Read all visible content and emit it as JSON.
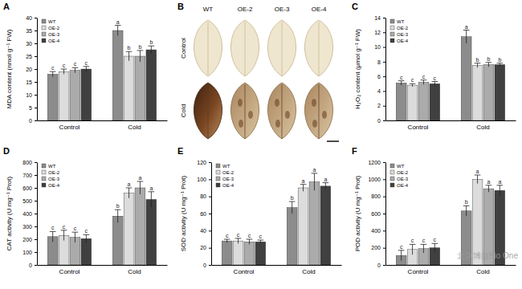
{
  "chart_data": [
    {
      "type": "bar",
      "title": "A",
      "y_label": "MDA content (nmol g⁻¹ FW)",
      "categories": [
        "Control",
        "Cold"
      ],
      "series": [
        {
          "name": "WT",
          "color": "#8c8c8c",
          "values": [
            18,
            35
          ],
          "errors": [
            1,
            2
          ],
          "annotations": [
            "c",
            "a"
          ]
        },
        {
          "name": "OE-2",
          "color": "#dcdcdc",
          "values": [
            19,
            25
          ],
          "errors": [
            1,
            1.8
          ],
          "annotations": [
            "c",
            "b"
          ]
        },
        {
          "name": "OE-3",
          "color": "#ababab",
          "values": [
            19.5,
            25
          ],
          "errors": [
            1,
            2.2
          ],
          "annotations": [
            "c",
            "b"
          ]
        },
        {
          "name": "OE-4",
          "color": "#404040",
          "values": [
            20,
            27.5
          ],
          "errors": [
            1,
            1.5
          ],
          "annotations": [
            "c",
            "b"
          ]
        }
      ],
      "ylim": [
        0,
        40
      ],
      "yticks": [
        0,
        5,
        10,
        15,
        20,
        25,
        30,
        35,
        40
      ],
      "legend": "upper left"
    },
    {
      "type": "image",
      "title": "B",
      "columns": [
        "WT",
        "OE-2",
        "OE-3",
        "OE-4"
      ],
      "rows": [
        "Control",
        "Cold"
      ]
    },
    {
      "type": "bar",
      "title": "C",
      "y_label": "H₂O₂ content (μmol g⁻¹ FW)",
      "categories": [
        "Control",
        "Cold"
      ],
      "series": [
        {
          "name": "WT",
          "color": "#8c8c8c",
          "values": [
            5.1,
            11.4
          ],
          "errors": [
            0.3,
            0.9
          ],
          "annotations": [
            "c",
            "a"
          ]
        },
        {
          "name": "OE-2",
          "color": "#dcdcdc",
          "values": [
            4.8,
            7.5
          ],
          "errors": [
            0.2,
            0.3
          ],
          "annotations": [
            "c",
            "b"
          ]
        },
        {
          "name": "OE-3",
          "color": "#ababab",
          "values": [
            5.2,
            7.6
          ],
          "errors": [
            0.3,
            0.3
          ],
          "annotations": [
            "c",
            "b"
          ]
        },
        {
          "name": "OE-4",
          "color": "#404040",
          "values": [
            5.0,
            7.6
          ],
          "errors": [
            0.3,
            0.2
          ],
          "annotations": [
            "c",
            "b"
          ]
        }
      ],
      "ylim": [
        0,
        14
      ],
      "yticks": [
        0,
        2,
        4,
        6,
        8,
        10,
        12,
        14
      ],
      "legend": "upper left"
    },
    {
      "type": "bar",
      "title": "D",
      "y_label": "CAT activity (U mg⁻¹ Prot)",
      "categories": [
        "Control",
        "Cold"
      ],
      "series": [
        {
          "name": "WT",
          "color": "#8c8c8c",
          "values": [
            220,
            380
          ],
          "errors": [
            40,
            50
          ],
          "annotations": [
            "c",
            "b"
          ]
        },
        {
          "name": "OE-2",
          "color": "#dcdcdc",
          "values": [
            230,
            560
          ],
          "errors": [
            40,
            40
          ],
          "annotations": [
            "c",
            "a"
          ]
        },
        {
          "name": "OE-3",
          "color": "#ababab",
          "values": [
            215,
            600
          ],
          "errors": [
            40,
            50
          ],
          "annotations": [
            "c",
            "a"
          ]
        },
        {
          "name": "OE-4",
          "color": "#404040",
          "values": [
            205,
            510
          ],
          "errors": [
            30,
            60
          ],
          "annotations": [
            "c",
            "a"
          ]
        }
      ],
      "ylim": [
        0,
        800
      ],
      "yticks": [
        0,
        100,
        200,
        300,
        400,
        500,
        600,
        700,
        800
      ],
      "legend": "upper left"
    },
    {
      "type": "bar",
      "title": "E",
      "y_label": "SOD activity (U mg⁻¹ Prot)",
      "categories": [
        "Control",
        "Cold"
      ],
      "series": [
        {
          "name": "WT",
          "color": "#8c8c8c",
          "values": [
            28,
            67
          ],
          "errors": [
            2,
            7
          ],
          "annotations": [
            "c",
            "b"
          ]
        },
        {
          "name": "OE-2",
          "color": "#dcdcdc",
          "values": [
            28,
            90
          ],
          "errors": [
            3,
            4
          ],
          "annotations": [
            "c",
            "a"
          ]
        },
        {
          "name": "OE-3",
          "color": "#ababab",
          "values": [
            27,
            97
          ],
          "errors": [
            3,
            10
          ],
          "annotations": [
            "c",
            "a"
          ]
        },
        {
          "name": "OE-4",
          "color": "#404040",
          "values": [
            27,
            92
          ],
          "errors": [
            2,
            4
          ],
          "annotations": [
            "c",
            "a"
          ]
        }
      ],
      "ylim": [
        0,
        120
      ],
      "yticks": [
        0,
        20,
        40,
        60,
        80,
        100,
        120
      ],
      "legend": "upper left"
    },
    {
      "type": "bar",
      "title": "F",
      "y_label": "POD activity (U mg⁻¹ Prot)",
      "categories": [
        "Control",
        "Cold"
      ],
      "series": [
        {
          "name": "WT",
          "color": "#8c8c8c",
          "values": [
            110,
            630
          ],
          "errors": [
            60,
            60
          ],
          "annotations": [
            "c",
            "b"
          ]
        },
        {
          "name": "OE-2",
          "color": "#dcdcdc",
          "values": [
            180,
            1000
          ],
          "errors": [
            60,
            50
          ],
          "annotations": [
            "c",
            "a"
          ]
        },
        {
          "name": "OE-3",
          "color": "#ababab",
          "values": [
            190,
            890
          ],
          "errors": [
            50,
            40
          ],
          "annotations": [
            "c",
            "a"
          ]
        },
        {
          "name": "OE-4",
          "color": "#404040",
          "values": [
            200,
            870
          ],
          "errors": [
            50,
            60
          ],
          "annotations": [
            "c",
            "a"
          ]
        }
      ],
      "ylim": [
        0,
        1200
      ],
      "yticks": [
        0,
        200,
        400,
        600,
        800,
        1000,
        1200
      ],
      "legend": "upper left"
    }
  ],
  "watermark": "北京博益Bio One"
}
